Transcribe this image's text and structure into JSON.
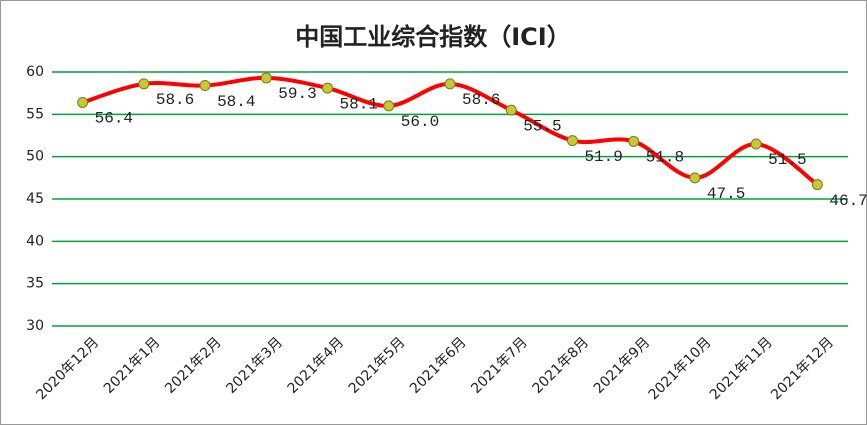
{
  "chart_data": {
    "type": "line",
    "title": "中国工业综合指数（ICI）",
    "categories": [
      "2020年12月",
      "2021年1月",
      "2021年2月",
      "2021年3月",
      "2021年4月",
      "2021年5月",
      "2021年6月",
      "2021年7月",
      "2021年8月",
      "2021年9月",
      "2021年10月",
      "2021年11月",
      "2021年12月"
    ],
    "values": [
      56.4,
      58.6,
      58.4,
      59.3,
      58.1,
      56.0,
      58.6,
      55.5,
      51.9,
      51.8,
      47.5,
      51.5,
      46.7
    ],
    "value_labels": [
      "56.4",
      "58.6",
      "58.4",
      "59.3",
      "58.1",
      "56.0",
      "58.6",
      "55.5",
      "51.9",
      "51.8",
      "47.5",
      "51.5",
      "46.7"
    ],
    "color": "#ff0000",
    "marker_color": "#c8c832",
    "ylim": [
      30,
      60
    ],
    "yticks": [
      30,
      35,
      40,
      45,
      50,
      55,
      60
    ],
    "grid": true,
    "grid_color": "#00a040",
    "smooth": true
  }
}
